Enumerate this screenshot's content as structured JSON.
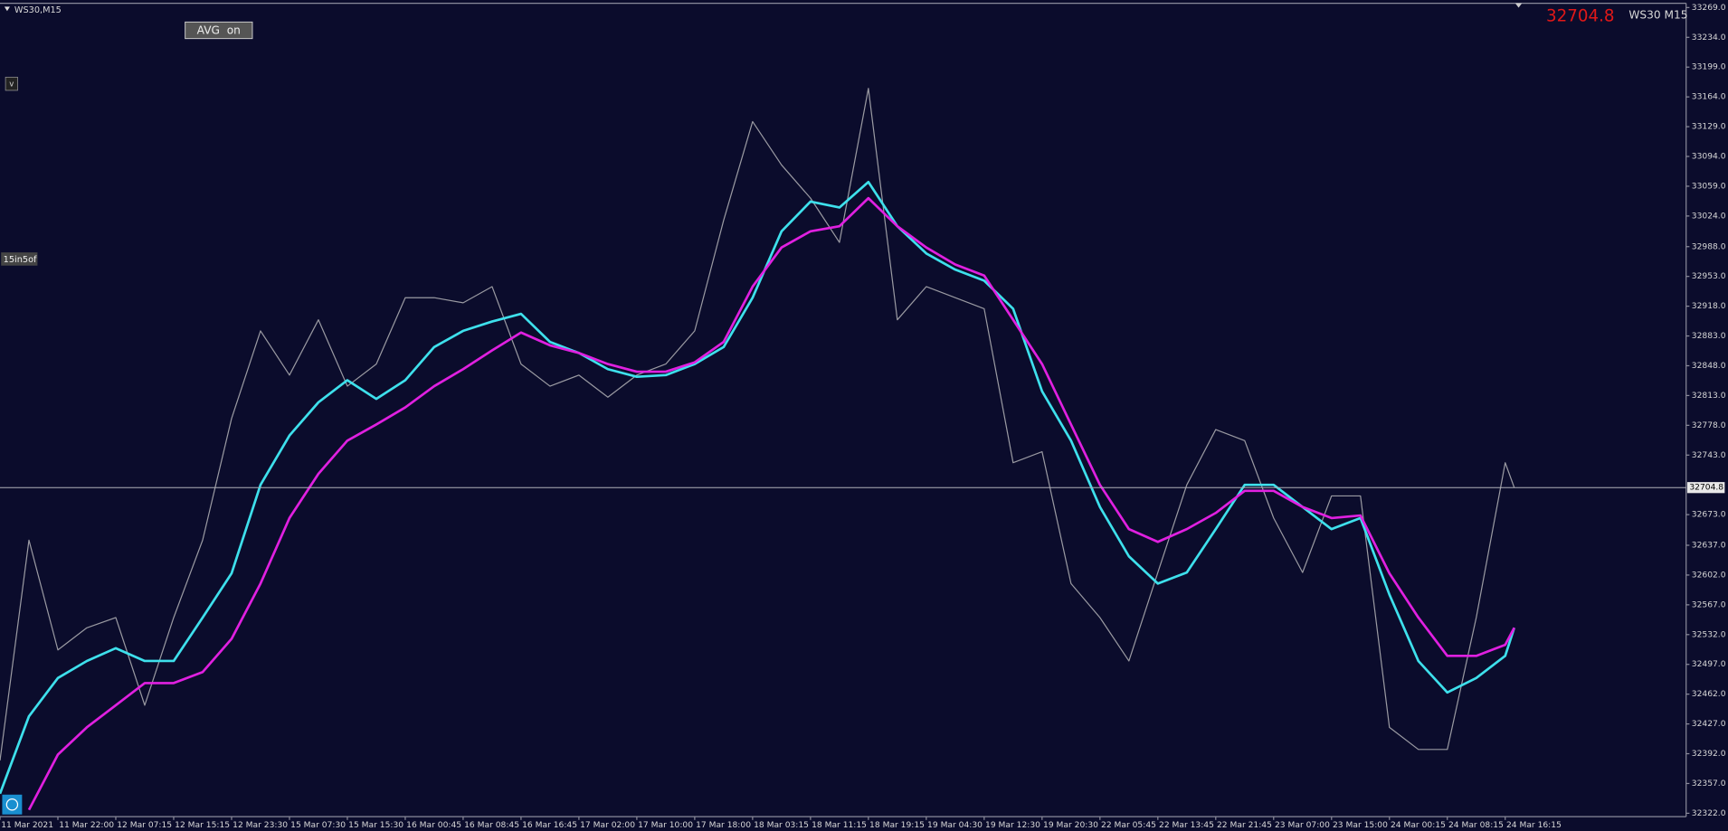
{
  "chart_data": {
    "type": "line",
    "title": "WS30,M15",
    "symbol_label": "WS30 M15",
    "current_price": 32704.8,
    "buttons": [
      "AVG  on",
      "v"
    ],
    "indicator_label": "15in5of",
    "x": [
      0,
      16,
      32,
      48,
      64,
      80,
      96,
      112,
      128,
      144,
      160,
      176,
      192,
      208,
      224,
      240,
      256,
      272,
      288,
      304,
      320,
      336,
      352,
      368,
      384,
      400,
      416,
      432,
      448,
      464,
      480,
      496,
      512,
      528,
      544,
      560,
      576,
      592,
      608,
      624,
      640,
      656,
      672,
      688,
      704,
      720,
      736,
      752,
      768,
      784,
      800,
      816,
      832,
      837
    ],
    "xlim": [
      0,
      932
    ],
    "xticks": [
      {
        "value": 0,
        "label": "11 Mar 2021"
      },
      {
        "value": 32,
        "label": "11 Mar 22:00"
      },
      {
        "value": 64,
        "label": "12 Mar 07:15"
      },
      {
        "value": 96,
        "label": "12 Mar 15:15"
      },
      {
        "value": 128,
        "label": "12 Mar 23:30"
      },
      {
        "value": 160,
        "label": "15 Mar 07:30"
      },
      {
        "value": 192,
        "label": "15 Mar 15:30"
      },
      {
        "value": 224,
        "label": "16 Mar 00:45"
      },
      {
        "value": 256,
        "label": "16 Mar 08:45"
      },
      {
        "value": 288,
        "label": "16 Mar 16:45"
      },
      {
        "value": 320,
        "label": "17 Mar 02:00"
      },
      {
        "value": 352,
        "label": "17 Mar 10:00"
      },
      {
        "value": 384,
        "label": "17 Mar 18:00"
      },
      {
        "value": 416,
        "label": "18 Mar 03:15"
      },
      {
        "value": 448,
        "label": "18 Mar 11:15"
      },
      {
        "value": 480,
        "label": "18 Mar 19:15"
      },
      {
        "value": 512,
        "label": "19 Mar 04:30"
      },
      {
        "value": 544,
        "label": "19 Mar 12:30"
      },
      {
        "value": 576,
        "label": "19 Mar 20:30"
      },
      {
        "value": 608,
        "label": "22 Mar 05:45"
      },
      {
        "value": 640,
        "label": "22 Mar 13:45"
      },
      {
        "value": 672,
        "label": "22 Mar 21:45"
      },
      {
        "value": 704,
        "label": "23 Mar 07:00"
      },
      {
        "value": 736,
        "label": "23 Mar 15:00"
      },
      {
        "value": 768,
        "label": "24 Mar 00:15"
      },
      {
        "value": 800,
        "label": "24 Mar 08:15"
      },
      {
        "value": 832,
        "label": "24 Mar 16:15"
      }
    ],
    "ylim": [
      32318,
      33274
    ],
    "yticks": [
      {
        "value": 33269,
        "label": "33269.0"
      },
      {
        "value": 33234,
        "label": "33234.0"
      },
      {
        "value": 33199,
        "label": "33199.0"
      },
      {
        "value": 33164,
        "label": "33164.0"
      },
      {
        "value": 33129,
        "label": "33129.0"
      },
      {
        "value": 33094,
        "label": "33094.0"
      },
      {
        "value": 33059,
        "label": "33059.0"
      },
      {
        "value": 33024,
        "label": "33024.0"
      },
      {
        "value": 32988,
        "label": "32988.0"
      },
      {
        "value": 32953,
        "label": "32953.0"
      },
      {
        "value": 32918,
        "label": "32918.0"
      },
      {
        "value": 32883,
        "label": "32883.0"
      },
      {
        "value": 32848,
        "label": "32848.0"
      },
      {
        "value": 32813,
        "label": "32813.0"
      },
      {
        "value": 32778,
        "label": "32778.0"
      },
      {
        "value": 32743,
        "label": "32743.0"
      },
      {
        "value": 32673,
        "label": "32673.0"
      },
      {
        "value": 32637,
        "label": "32637.0"
      },
      {
        "value": 32602,
        "label": "32602.0"
      },
      {
        "value": 32567,
        "label": "32567.0"
      },
      {
        "value": 32532,
        "label": "32532.0"
      },
      {
        "value": 32497,
        "label": "32497.0"
      },
      {
        "value": 32462,
        "label": "32462.0"
      },
      {
        "value": 32427,
        "label": "32427.0"
      },
      {
        "value": 32392,
        "label": "32392.0"
      },
      {
        "value": 32357,
        "label": "32357.0"
      },
      {
        "value": 32322,
        "label": "32322.0"
      }
    ],
    "series": [
      {
        "color": "#9a9aa2",
        "values": [
          32384,
          32643,
          32514,
          32540,
          32552,
          32449,
          32552,
          32643,
          32786,
          32889,
          32837,
          32902,
          32824,
          32850,
          32928,
          32928,
          32922,
          32941,
          32850,
          32824,
          32837,
          32811,
          32837,
          32850,
          32889,
          33019,
          33135,
          33084,
          33045,
          32993,
          33174,
          32902,
          32941,
          32928,
          32915,
          32734,
          32747,
          32592,
          32552,
          32501,
          32605,
          32708,
          32773,
          32760,
          32669,
          32605,
          32695,
          32695,
          32423,
          32397,
          32397,
          32552,
          32734,
          32704.8
        ]
      },
      {
        "color": "#3ee0ec",
        "values": [
          32345,
          32436,
          32481,
          32501,
          32516,
          32501,
          32501,
          32552,
          32604,
          32708,
          32766,
          32805,
          32831,
          32809,
          32831,
          32870,
          32889,
          32900,
          32909,
          32876,
          32863,
          32844,
          32835,
          32837,
          32850,
          32870,
          32928,
          33006,
          33041,
          33034,
          33064,
          33012,
          32980,
          32961,
          32948,
          32915,
          32818,
          32760,
          32682,
          32624,
          32592,
          32605,
          32656,
          32708,
          32708,
          32682,
          32656,
          32669,
          32579,
          32501,
          32464,
          32481,
          32507,
          32540
        ]
      },
      {
        "color": "#e020e0",
        "values": [
          null,
          32326,
          32391,
          32423,
          32449,
          32475,
          32475,
          32488,
          32527,
          32592,
          32669,
          32721,
          32760,
          32779,
          32799,
          32824,
          32844,
          32866,
          32887,
          32872,
          32863,
          32850,
          32841,
          32841,
          32852,
          32876,
          32941,
          32987,
          33006,
          33012,
          33045,
          33012,
          32987,
          32967,
          32954,
          32902,
          32850,
          32779,
          32708,
          32656,
          32641,
          32656,
          32675,
          32701,
          32701,
          32682,
          32669,
          32672,
          32604,
          32552,
          32507,
          32507,
          32520,
          32540
        ]
      }
    ]
  }
}
